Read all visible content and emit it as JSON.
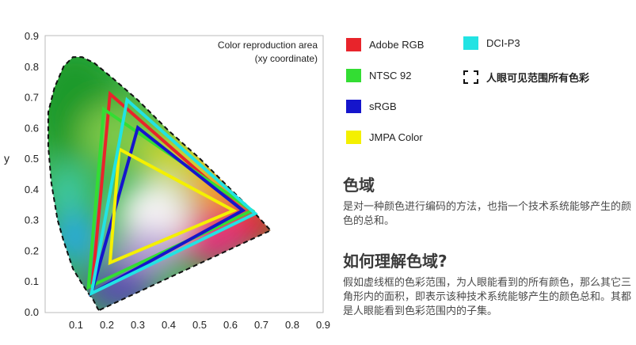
{
  "chart_data": {
    "type": "chromaticity-diagram",
    "title": "Color reproduction area",
    "subtitle": "(xy coordinate)",
    "ylabel": "y",
    "xlabel": "",
    "xlim": [
      0,
      0.9
    ],
    "ylim": [
      0,
      0.9
    ],
    "xticks": [
      "0.1",
      "0.2",
      "0.3",
      "0.4",
      "0.5",
      "0.6",
      "0.7",
      "0.8",
      "0.9"
    ],
    "yticks": [
      "0.0",
      "0.1",
      "0.2",
      "0.3",
      "0.4",
      "0.5",
      "0.6",
      "0.7",
      "0.8",
      "0.9"
    ],
    "grid": false,
    "spectral_locus": [
      [
        0.175,
        0.005
      ],
      [
        0.17,
        0.01
      ],
      [
        0.165,
        0.02
      ],
      [
        0.155,
        0.04
      ],
      [
        0.14,
        0.06
      ],
      [
        0.12,
        0.09
      ],
      [
        0.09,
        0.14
      ],
      [
        0.06,
        0.23
      ],
      [
        0.04,
        0.3
      ],
      [
        0.02,
        0.42
      ],
      [
        0.01,
        0.54
      ],
      [
        0.01,
        0.65
      ],
      [
        0.03,
        0.73
      ],
      [
        0.06,
        0.8
      ],
      [
        0.09,
        0.83
      ],
      [
        0.12,
        0.83
      ],
      [
        0.16,
        0.81
      ],
      [
        0.22,
        0.76
      ],
      [
        0.3,
        0.69
      ],
      [
        0.4,
        0.59
      ],
      [
        0.5,
        0.5
      ],
      [
        0.6,
        0.4
      ],
      [
        0.68,
        0.32
      ],
      [
        0.73,
        0.265
      ]
    ],
    "series": [
      {
        "name": "Adobe RGB",
        "color": "#e8242b",
        "points": [
          [
            0.64,
            0.33
          ],
          [
            0.21,
            0.71
          ],
          [
            0.15,
            0.06
          ]
        ]
      },
      {
        "name": "NTSC 92",
        "color": "#33dd33",
        "points": [
          [
            0.67,
            0.33
          ],
          [
            0.19,
            0.66
          ],
          [
            0.14,
            0.08
          ]
        ]
      },
      {
        "name": "sRGB",
        "color": "#1515cc",
        "points": [
          [
            0.64,
            0.33
          ],
          [
            0.3,
            0.6
          ],
          [
            0.15,
            0.06
          ]
        ]
      },
      {
        "name": "JMPA Color",
        "color": "#f4f000",
        "points": [
          [
            0.61,
            0.33
          ],
          [
            0.24,
            0.53
          ],
          [
            0.21,
            0.16
          ]
        ]
      },
      {
        "name": "DCI-P3",
        "color": "#22e3e3",
        "points": [
          [
            0.68,
            0.32
          ],
          [
            0.265,
            0.69
          ],
          [
            0.15,
            0.06
          ]
        ]
      }
    ]
  },
  "legend": {
    "items": [
      {
        "label": "Adobe RGB",
        "color": "#e8242b"
      },
      {
        "label": "NTSC 92",
        "color": "#33dd33"
      },
      {
        "label": "sRGB",
        "color": "#1515cc"
      },
      {
        "label": "JMPA Color",
        "color": "#f4f000"
      },
      {
        "label": "DCI-P3",
        "color": "#22e3e3"
      },
      {
        "label": "人眼可见范围所有色彩",
        "color": "#111111"
      }
    ]
  },
  "text": {
    "heading1": "色域",
    "para1": "是对一种颜色进行编码的方法，也指一个技术系统能够产生的颜色的总和。",
    "heading2": "如何理解色域?",
    "para2": "假如虚线框的色彩范围，为人眼能看到的所有颜色，那么其它三角形内的面积，即表示该种技术系统能够产生的颜色总和。其都是人眼能看到色彩范围内的子集。"
  }
}
